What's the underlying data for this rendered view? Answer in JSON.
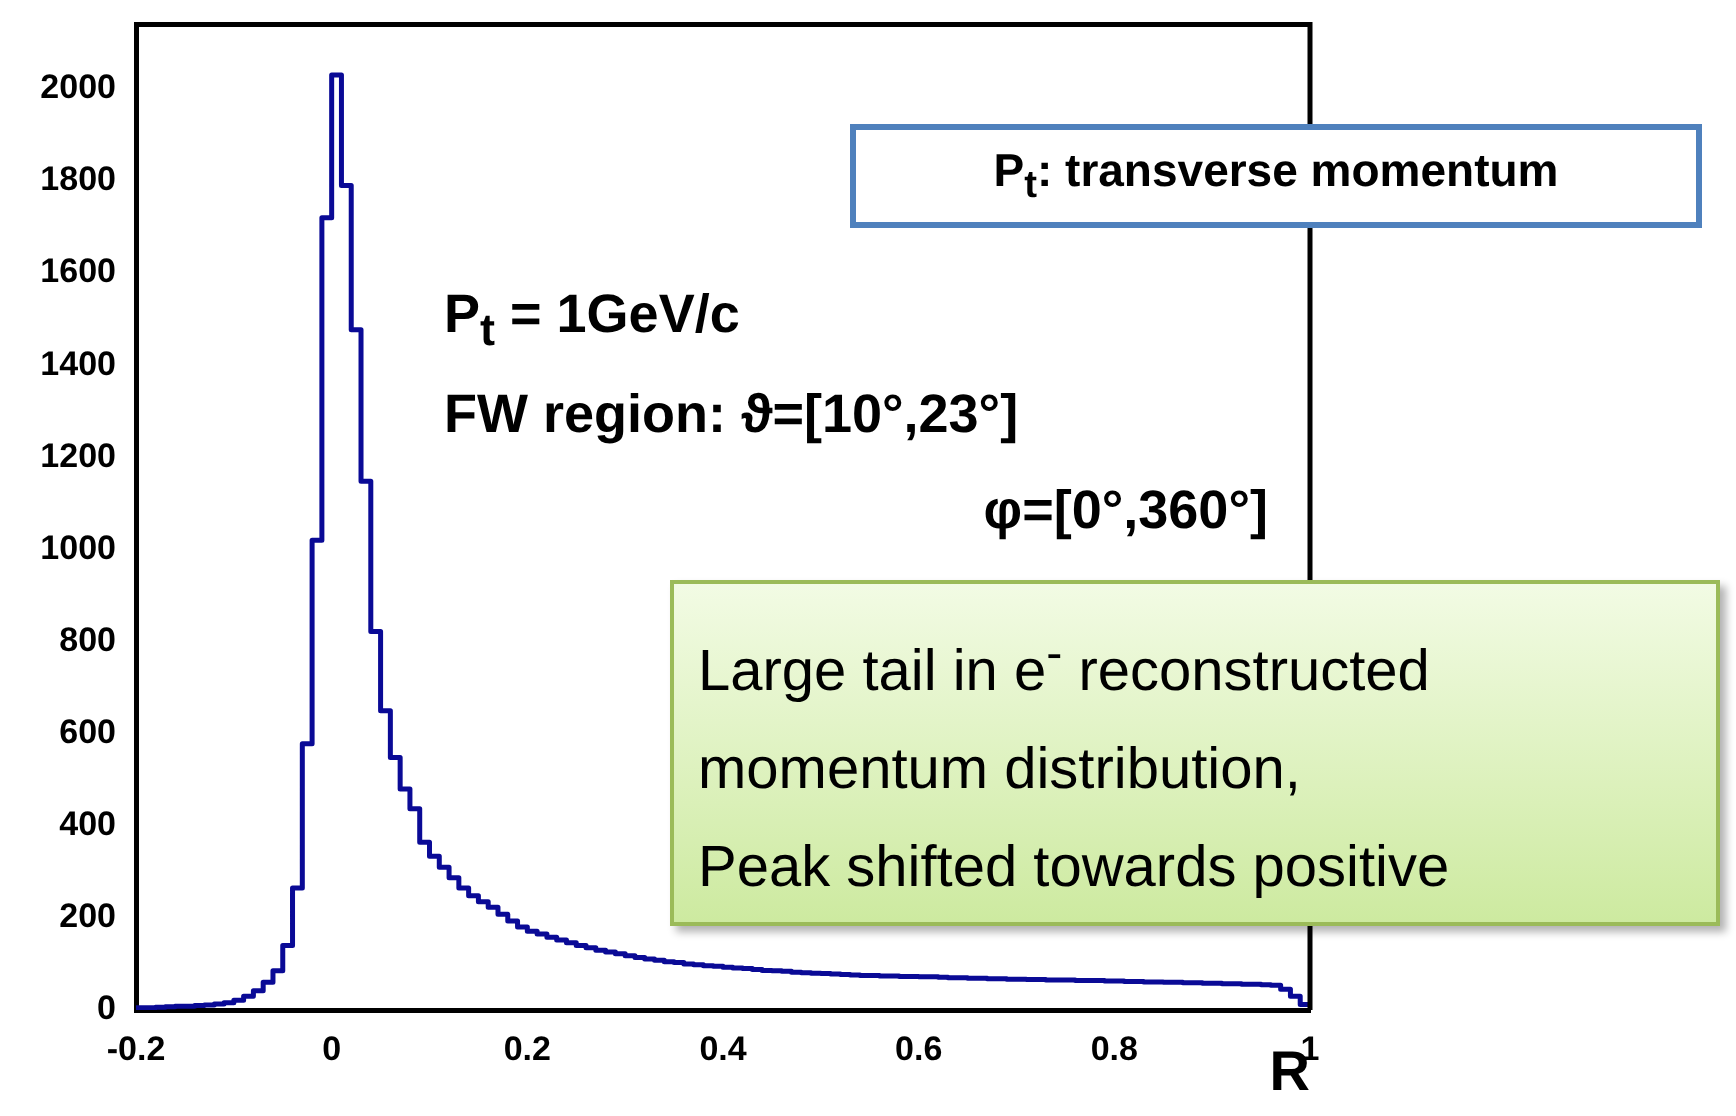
{
  "chart_data": {
    "type": "histogram",
    "xlabel": "R",
    "bins": [
      -0.2,
      -0.19,
      -0.18,
      -0.17,
      -0.16,
      -0.15,
      -0.14,
      -0.13,
      -0.12,
      -0.11,
      -0.1,
      -0.09,
      -0.08,
      -0.07,
      -0.06,
      -0.05,
      -0.04,
      -0.03,
      -0.02,
      -0.01,
      0,
      0.01,
      0.02,
      0.03,
      0.04,
      0.05,
      0.06,
      0.07,
      0.08,
      0.09,
      0.1,
      0.11,
      0.12,
      0.13,
      0.14,
      0.15,
      0.16,
      0.17,
      0.18,
      0.19,
      0.2,
      0.21,
      0.22,
      0.23,
      0.24,
      0.25,
      0.26,
      0.27,
      0.28,
      0.29,
      0.3,
      0.31,
      0.32,
      0.33,
      0.34,
      0.35,
      0.36,
      0.37,
      0.38,
      0.39,
      0.4,
      0.41,
      0.42,
      0.43,
      0.44,
      0.45,
      0.46,
      0.47,
      0.48,
      0.49,
      0.5,
      0.51,
      0.52,
      0.53,
      0.54,
      0.55,
      0.56,
      0.57,
      0.58,
      0.59,
      0.6,
      0.61,
      0.62,
      0.63,
      0.64,
      0.65,
      0.66,
      0.67,
      0.68,
      0.69,
      0.7,
      0.71,
      0.72,
      0.73,
      0.74,
      0.75,
      0.76,
      0.77,
      0.78,
      0.79,
      0.8,
      0.81,
      0.82,
      0.83,
      0.84,
      0.85,
      0.86,
      0.87,
      0.88,
      0.89,
      0.9,
      0.91,
      0.92,
      0.93,
      0.94,
      0.95,
      0.96,
      0.97,
      0.98,
      0.99,
      1
    ],
    "values": [
      5,
      5,
      6,
      7,
      8,
      8,
      10,
      11,
      13,
      16,
      21,
      30,
      42,
      60,
      85,
      140,
      265,
      578,
      1020,
      1720,
      2030,
      1790,
      1477,
      1148,
      822,
      650,
      548,
      480,
      437,
      364,
      334,
      310,
      287,
      265,
      248,
      235,
      223,
      208,
      193,
      180,
      171,
      165,
      158,
      152,
      146,
      140,
      135,
      130,
      126,
      122,
      118,
      114,
      111,
      108,
      105,
      103,
      100,
      98,
      96,
      95,
      93,
      91,
      90,
      88,
      86,
      85,
      84,
      82,
      81,
      80,
      79,
      78,
      77,
      76,
      75,
      75,
      74,
      74,
      73,
      73,
      72,
      72,
      71,
      70,
      70,
      69,
      69,
      68,
      68,
      67,
      67,
      66,
      66,
      65,
      65,
      65,
      64,
      64,
      64,
      63,
      63,
      62,
      62,
      61,
      61,
      60,
      60,
      59,
      59,
      58,
      58,
      57,
      57,
      56,
      56,
      55,
      54,
      45,
      30,
      12
    ],
    "color": "#0a0a96",
    "xlim": [
      -0.2,
      1
    ],
    "xticks": [
      -0.2,
      0,
      0.2,
      0.4,
      0.6,
      0.8,
      1
    ],
    "ylim": [
      0,
      2140
    ],
    "yticks": [
      0,
      200,
      400,
      600,
      800,
      1000,
      1200,
      1400,
      1600,
      1800,
      2000
    ],
    "annotations": [
      "P$_{t}$: transverse momentum",
      "P$_{t}$ = 1GeV/c",
      "FW region: ϑ=[10°,23°]",
      "φ=[0°,360°]",
      "Large tail in e$^{-}$ reconstructed\nmomentum distribution,\nPeak shifted towards positive"
    ]
  }
}
